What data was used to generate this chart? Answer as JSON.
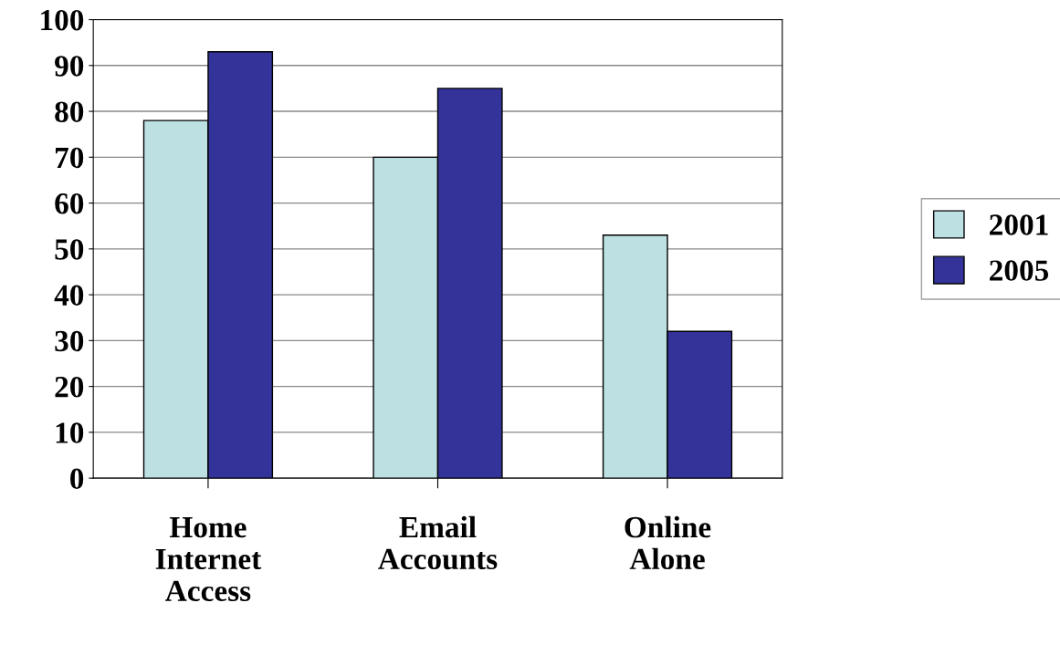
{
  "chart_data": {
    "type": "bar",
    "categories": [
      "Home\nInternet\nAccess",
      "Email\nAccounts",
      "Online\nAlone"
    ],
    "series": [
      {
        "name": "2001",
        "color": "#bde0e3",
        "values": [
          78,
          70,
          53
        ]
      },
      {
        "name": "2005",
        "color": "#333399",
        "values": [
          93,
          85,
          32
        ]
      }
    ],
    "ylim": [
      0,
      100
    ],
    "yticks": [
      0,
      10,
      20,
      30,
      40,
      50,
      60,
      70,
      80,
      90,
      100
    ],
    "grid": "y",
    "legend": "right"
  }
}
